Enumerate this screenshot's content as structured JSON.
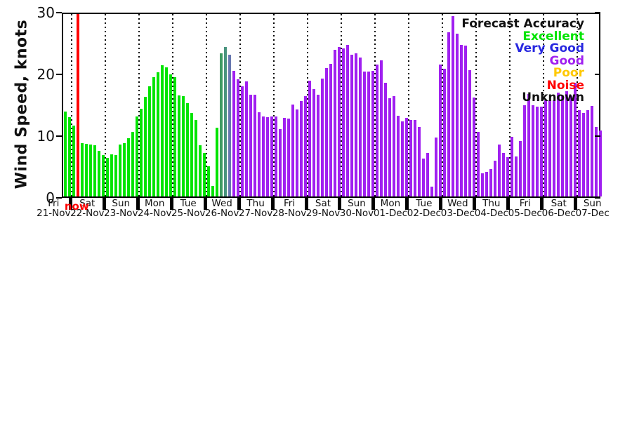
{
  "chart_data": {
    "type": "bar",
    "title": "",
    "ylabel": "Wind Speed, knots",
    "ylim": [
      0,
      30
    ],
    "yticks": [
      0,
      10,
      20,
      30
    ],
    "grid": "vertical-dotted-at-day-boundaries",
    "slot_hours": [
      0,
      3,
      6,
      9,
      12,
      15,
      18,
      21
    ],
    "legend": {
      "title": "Forecast Accuracy",
      "position": "top-right-inside",
      "entries": [
        {
          "label": "Excellent",
          "color": "#00E400"
        },
        {
          "label": "Very Good",
          "color": "#2828E0"
        },
        {
          "label": "Good",
          "color": "#A020F0"
        },
        {
          "label": "Poor",
          "color": "#FFC800"
        },
        {
          "label": "Noise",
          "color": "#FF0000"
        },
        {
          "label": "Unknown",
          "color": "#111111"
        }
      ]
    },
    "now_marker": {
      "label": "now",
      "day_index": 1,
      "slot_index": 1,
      "color": "#FF0000"
    },
    "bar_colors": {
      "ex": "#00E400",
      "tr1": "#3F9B63",
      "tr2": "#4A947E",
      "tr3": "#6878B0",
      "gd": "#A020F0"
    },
    "days": [
      {
        "weekday": "Fri",
        "date": "21-Nov",
        "values": [
          null,
          null,
          null,
          null,
          null,
          null,
          13.7,
          12.8
        ],
        "accuracy": [
          null,
          null,
          null,
          null,
          null,
          null,
          "ex",
          "ex"
        ]
      },
      {
        "weekday": "Sat",
        "date": "22-Nov",
        "values": [
          11.5,
          null,
          8.6,
          8.5,
          8.4,
          8.3,
          7.4,
          6.7
        ],
        "accuracy": [
          "ex",
          "now",
          "ex",
          "ex",
          "ex",
          "ex",
          "ex",
          "ex"
        ]
      },
      {
        "weekday": "Sun",
        "date": "23-Nov",
        "values": [
          6.3,
          6.8,
          6.7,
          8.4,
          8.6,
          9.4,
          10.4,
          12.9
        ],
        "accuracy": [
          "ex",
          "ex",
          "ex",
          "ex",
          "ex",
          "ex",
          "ex",
          "ex"
        ]
      },
      {
        "weekday": "Mon",
        "date": "24-Nov",
        "values": [
          14.2,
          16.1,
          17.8,
          19.3,
          20.1,
          21.2,
          20.9,
          19.8
        ],
        "accuracy": [
          "ex",
          "ex",
          "ex",
          "ex",
          "ex",
          "ex",
          "ex",
          "ex"
        ]
      },
      {
        "weekday": "Tue",
        "date": "25-Nov",
        "values": [
          19.3,
          16.4,
          16.2,
          15.1,
          13.5,
          12.4,
          8.3,
          7.0
        ],
        "accuracy": [
          "ex",
          "ex",
          "ex",
          "ex",
          "ex",
          "ex",
          "ex",
          "ex"
        ]
      },
      {
        "weekday": "Wed",
        "date": "26-Nov",
        "values": [
          4.9,
          1.7,
          11.1,
          23.2,
          24.2,
          22.9,
          20.3,
          19.0
        ],
        "accuracy": [
          "ex",
          "ex",
          "ex",
          "tr1",
          "tr2",
          "tr3",
          "gd",
          "gd"
        ]
      },
      {
        "weekday": "Thu",
        "date": "27-Nov",
        "values": [
          17.8,
          18.6,
          16.5,
          16.5,
          13.6,
          12.9,
          12.8,
          12.9
        ],
        "accuracy": [
          "gd",
          "gd",
          "gd",
          "gd",
          "gd",
          "gd",
          "gd",
          "gd"
        ]
      },
      {
        "weekday": "Fri",
        "date": "28-Nov",
        "values": [
          13.0,
          10.9,
          12.7,
          12.6,
          14.9,
          14.1,
          15.4,
          16.3
        ],
        "accuracy": [
          "gd",
          "gd",
          "gd",
          "gd",
          "gd",
          "gd",
          "gd",
          "gd"
        ]
      },
      {
        "weekday": "Sat",
        "date": "29-Nov",
        "values": [
          18.7,
          17.4,
          16.5,
          19.1,
          20.8,
          21.5,
          23.7,
          24.2
        ],
        "accuracy": [
          "gd",
          "gd",
          "gd",
          "gd",
          "gd",
          "gd",
          "gd",
          "gd"
        ]
      },
      {
        "weekday": "Sun",
        "date": "30-Nov",
        "values": [
          24.0,
          24.6,
          23.0,
          23.2,
          22.5,
          20.2,
          20.2,
          20.3
        ],
        "accuracy": [
          "gd",
          "gd",
          "gd",
          "gd",
          "gd",
          "gd",
          "gd",
          "gd"
        ]
      },
      {
        "weekday": "Mon",
        "date": "01-Dec",
        "values": [
          21.4,
          22.0,
          18.4,
          15.9,
          16.2,
          13.1,
          12.2,
          12.7
        ],
        "accuracy": [
          "gd",
          "gd",
          "gd",
          "gd",
          "gd",
          "gd",
          "gd",
          "gd"
        ]
      },
      {
        "weekday": "Tue",
        "date": "02-Dec",
        "values": [
          12.4,
          12.4,
          11.3,
          6.1,
          7.1,
          1.6,
          9.5,
          21.4
        ],
        "accuracy": [
          "gd",
          "gd",
          "gd",
          "gd",
          "gd",
          "gd",
          "gd",
          "gd"
        ]
      },
      {
        "weekday": "Wed",
        "date": "03-Dec",
        "values": [
          20.7,
          26.6,
          29.2,
          26.4,
          24.5,
          24.4,
          20.4,
          16.0
        ],
        "accuracy": [
          "gd",
          "gd",
          "gd",
          "gd",
          "gd",
          "gd",
          "gd",
          "gd"
        ]
      },
      {
        "weekday": "Thu",
        "date": "04-Dec",
        "values": [
          10.4,
          3.8,
          4.0,
          4.4,
          5.8,
          8.4,
          7.1,
          6.4
        ],
        "accuracy": [
          "gd",
          "gd",
          "gd",
          "gd",
          "gd",
          "gd",
          "gd",
          "gd"
        ]
      },
      {
        "weekday": "Fri",
        "date": "05-Dec",
        "values": [
          9.7,
          6.5,
          9.0,
          14.8,
          16.6,
          14.8,
          14.6,
          14.6
        ],
        "accuracy": [
          "gd",
          "gd",
          "gd",
          "gd",
          "gd",
          "gd",
          "gd",
          "gd"
        ]
      },
      {
        "weekday": "Sat",
        "date": "06-Dec",
        "values": [
          15.6,
          15.6,
          15.6,
          16.8,
          16.4,
          17.1,
          16.4,
          18.4
        ],
        "accuracy": [
          "gd",
          "gd",
          "gd",
          "gd",
          "gd",
          "gd",
          "gd",
          "gd"
        ]
      },
      {
        "weekday": "Sun",
        "date": "07-Dec",
        "values": [
          14.0,
          13.5,
          14.0,
          14.7,
          11.3,
          10.7,
          null,
          null
        ],
        "accuracy": [
          "gd",
          "gd",
          "gd",
          "gd",
          "gd",
          "gd",
          null,
          null
        ]
      }
    ]
  }
}
